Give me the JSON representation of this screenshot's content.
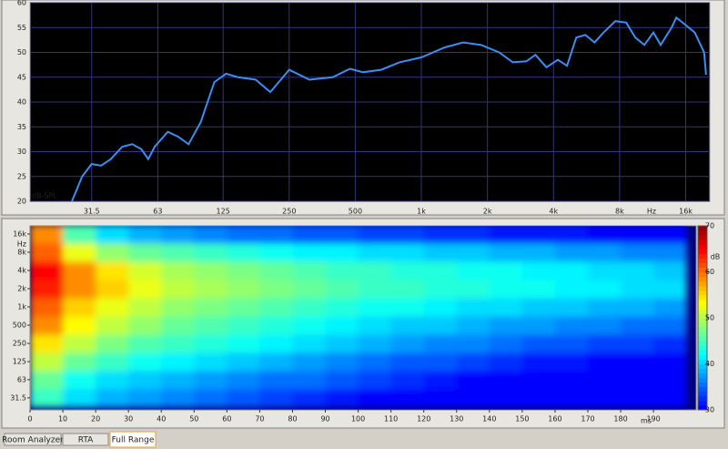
{
  "chart_data": [
    {
      "type": "line",
      "y_label": "dB-SPL",
      "x_unit": "Hz",
      "log_x": true,
      "grid": true,
      "x": [
        25.6,
        28.5,
        31.5,
        34.8,
        38.5,
        43.4,
        48.2,
        53,
        57,
        61,
        70,
        78,
        87,
        99,
        114,
        129,
        146,
        176,
        205,
        250,
        309,
        395,
        473,
        543,
        656,
        795,
        1000,
        1280,
        1550,
        1870,
        2260,
        2610,
        3010,
        3310,
        3710,
        4190,
        4610,
        5080,
        5590,
        6150,
        6760,
        7650,
        8580,
        9430,
        10370,
        11400,
        12300,
        13800,
        14500,
        16000,
        17600,
        19400,
        19800
      ],
      "series": [
        {
          "color": "#3a8ef5",
          "values": [
            20,
            25,
            27.5,
            27.2,
            28.5,
            31,
            31.5,
            30.5,
            28.5,
            31,
            34,
            33,
            31.5,
            36,
            44,
            45.7,
            45,
            44.5,
            42,
            46.5,
            44.5,
            45,
            46.7,
            46,
            46.5,
            48,
            49,
            51,
            52,
            51.5,
            50,
            48,
            48.2,
            49.5,
            47,
            48.5,
            47.3,
            53,
            53.5,
            52,
            54,
            56.3,
            56,
            53,
            51.5,
            54,
            51.5,
            55,
            57,
            55.5,
            54,
            50,
            45.5
          ]
        }
      ],
      "xlim": [
        16.5,
        20600
      ],
      "ylim": [
        20,
        60
      ],
      "xticks": [
        31.5,
        63,
        125,
        250,
        500,
        {
          "value": 1000,
          "label": "1k"
        },
        {
          "value": 2000,
          "label": "2k"
        },
        {
          "value": 4000,
          "label": "4k"
        },
        {
          "value": 8000,
          "label": "8k"
        },
        {
          "value": 16000,
          "label": "16k"
        }
      ],
      "yticks": [
        20,
        25,
        30,
        35,
        40,
        45,
        50,
        55,
        60
      ]
    },
    {
      "type": "heatmap",
      "x_unit": "ms",
      "y_unit": "Hz",
      "colorbar_label": "dB",
      "log_y": true,
      "time_bins": [
        0,
        10,
        20,
        30,
        40,
        50,
        60,
        70,
        80,
        90,
        100,
        110,
        120,
        130,
        140,
        150,
        160,
        170,
        180,
        190,
        200
      ],
      "frequencies": [
        31.5,
        63,
        125,
        250,
        500,
        1000,
        2000,
        4000,
        8000,
        16000
      ],
      "values": [
        [
          44,
          40,
          38,
          37,
          36,
          35,
          34,
          33,
          32,
          31,
          30,
          30,
          30,
          30,
          30,
          30,
          30,
          30,
          30,
          30
        ],
        [
          46,
          42,
          40,
          39,
          38,
          37,
          36,
          35,
          35,
          34,
          33,
          32,
          31,
          30,
          30,
          30,
          30,
          30,
          30,
          30
        ],
        [
          50,
          46,
          44,
          42,
          41,
          40,
          39,
          38,
          37,
          36,
          35,
          34,
          34,
          33,
          32,
          31,
          31,
          30,
          30,
          30
        ],
        [
          54,
          50,
          47,
          45,
          44,
          43,
          42,
          41,
          40,
          39,
          38,
          37,
          36,
          36,
          35,
          34,
          34,
          33,
          33,
          32
        ],
        [
          58,
          53,
          50,
          48,
          46,
          45,
          44,
          43,
          42,
          41,
          40,
          39,
          39,
          38,
          37,
          37,
          36,
          36,
          35,
          35
        ],
        [
          60,
          55,
          52,
          50,
          48,
          47,
          46,
          45,
          44,
          43,
          42,
          42,
          41,
          40,
          40,
          39,
          39,
          38,
          38,
          37
        ],
        [
          63,
          58,
          55,
          52,
          50,
          49,
          48,
          47,
          46,
          45,
          44,
          44,
          43,
          43,
          42,
          42,
          41,
          41,
          40,
          40
        ],
        [
          64,
          58,
          54,
          51,
          49,
          48,
          47,
          46,
          45,
          44,
          44,
          43,
          43,
          42,
          42,
          41,
          41,
          40,
          40,
          39
        ],
        [
          60,
          52,
          48,
          46,
          45,
          44,
          43,
          42,
          41,
          41,
          40,
          40,
          39,
          39,
          38,
          38,
          37,
          37,
          36,
          36
        ],
        [
          58,
          45,
          40,
          38,
          37,
          36,
          35,
          35,
          34,
          34,
          33,
          33,
          32,
          32,
          31,
          31,
          31,
          30,
          30,
          30
        ]
      ],
      "xlim": [
        0,
        203
      ],
      "ylim": [
        20,
        21800
      ],
      "xticks": [
        0,
        10,
        20,
        30,
        40,
        50,
        60,
        70,
        80,
        90,
        100,
        110,
        120,
        130,
        140,
        150,
        160,
        170,
        180,
        190
      ],
      "yticks": [
        31.5,
        63,
        125,
        250,
        500,
        {
          "value": 1000,
          "label": "1k"
        },
        {
          "value": 2000,
          "label": "2k"
        },
        {
          "value": 4000,
          "label": "4k"
        },
        {
          "value": 8000,
          "label": "8k"
        },
        {
          "value": 16000,
          "label": "16k"
        }
      ],
      "clim": [
        30,
        70
      ],
      "cticks": [
        30,
        40,
        50,
        60,
        70
      ]
    }
  ],
  "tabs": [
    {
      "label": "Room Analyzer",
      "active": false
    },
    {
      "label": "RTA",
      "active": false
    },
    {
      "label": "Full Range",
      "active": true
    }
  ]
}
